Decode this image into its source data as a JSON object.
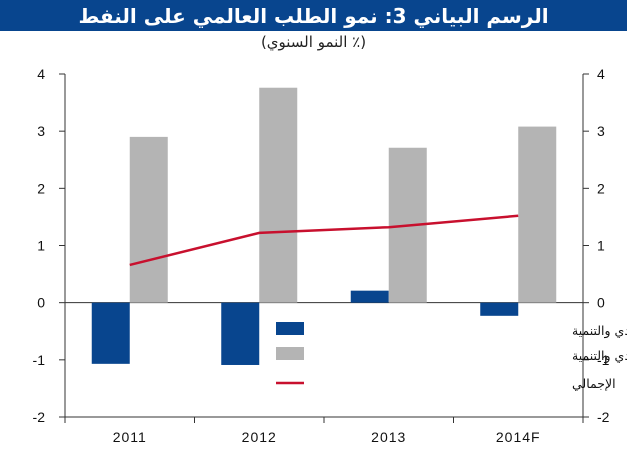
{
  "chart_data": {
    "type": "bar",
    "title": "الرسم البياني 3: نمو الطلب العالمي على النفط",
    "subtitle": "(٪ النمو السنوي)",
    "categories": [
      "2011",
      "2012",
      "2013",
      "2014F"
    ],
    "ylim": [
      -2,
      4
    ],
    "yticks": [
      -2,
      -1,
      0,
      1,
      2,
      3,
      4
    ],
    "grid": false,
    "legend_position": "bottom-right",
    "series": [
      {
        "name": "دول أعضاء منظمة التعاون الاقتصادي والتنمية",
        "type": "bar",
        "color": "#08458e",
        "values": [
          -1.07,
          -1.09,
          0.21,
          -0.23
        ]
      },
      {
        "name": "دول من خارج منظمة التعاون الاقتصادي والتنمية",
        "type": "bar",
        "color": "#b4b4b4",
        "values": [
          2.9,
          3.76,
          2.71,
          3.08
        ]
      },
      {
        "name": "الإجمالي",
        "type": "line",
        "color": "#c8102e",
        "values": [
          0.66,
          1.22,
          1.32,
          1.52
        ]
      }
    ]
  }
}
